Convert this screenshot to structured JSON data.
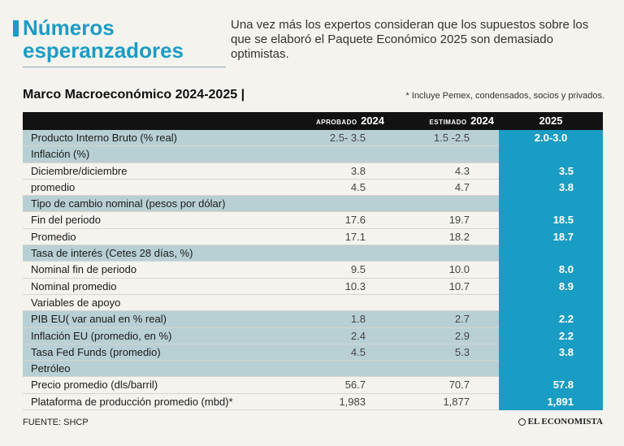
{
  "header": {
    "title_line1": "Números",
    "title_line2": "esperanzadores",
    "subtitle": "Una vez más los expertos consideran que los supuestos sobre los que se elaboró el Paquete Económico 2025 son demasiado optimistas."
  },
  "section": {
    "title": "Marco Macroeconómico 2024-2025 |",
    "note": "* Incluye Pemex, condensados, socios y privados."
  },
  "table": {
    "headers": {
      "aprobado_small": "APROBADO",
      "aprobado_year": "2024",
      "estimado_small": "ESTIMADO",
      "estimado_year": "2024",
      "y2025": "2025"
    },
    "rows": [
      {
        "label": "Producto Interno Bruto (% real)",
        "aprobado": "2.5- 3.5",
        "estimado": "1.5 -2.5",
        "y2025": "2.0-3.0"
      },
      {
        "label": "Inflación (%)",
        "aprobado": "",
        "estimado": "",
        "y2025": ""
      },
      {
        "label": "Diciembre/diciembre",
        "aprobado": "3.8",
        "estimado": "4.3",
        "y2025": "3.5"
      },
      {
        "label": "promedio",
        "aprobado": "4.5",
        "estimado": "4.7",
        "y2025": "3.8"
      },
      {
        "label": "Tipo de cambio nominal (pesos por dólar)",
        "aprobado": "",
        "estimado": "",
        "y2025": ""
      },
      {
        "label": "Fin del periodo",
        "aprobado": "17.6",
        "estimado": "19.7",
        "y2025": "18.5"
      },
      {
        "label": "Promedio",
        "aprobado": "17.1",
        "estimado": "18.2",
        "y2025": "18.7"
      },
      {
        "label": "Tasa de interés (Cetes 28 días, %)",
        "aprobado": "",
        "estimado": "",
        "y2025": ""
      },
      {
        "label": "Nominal fin de periodo",
        "aprobado": "9.5",
        "estimado": "10.0",
        "y2025": "8.0"
      },
      {
        "label": "Nominal promedio",
        "aprobado": "10.3",
        "estimado": "10.7",
        "y2025": "8.9"
      },
      {
        "label": "Variables de apoyo",
        "aprobado": "",
        "estimado": "",
        "y2025": ""
      },
      {
        "label": "PIB EU( var anual en % real)",
        "aprobado": "1.8",
        "estimado": "2.7",
        "y2025": "2.2"
      },
      {
        "label": "Inflación EU (promedio, en %)",
        "aprobado": "2.4",
        "estimado": "2.9",
        "y2025": "2.2"
      },
      {
        "label": "Tasa Fed Funds (promedio)",
        "aprobado": "4.5",
        "estimado": "5.3",
        "y2025": "3.8"
      },
      {
        "label": "Petróleo",
        "aprobado": "",
        "estimado": "",
        "y2025": ""
      },
      {
        "label": "Precio promedio (dls/barril)",
        "aprobado": "56.7",
        "estimado": "70.7",
        "y2025": "57.8"
      },
      {
        "label": "Plataforma de producción promedio (mbd)*",
        "aprobado": "1,983",
        "estimado": "1,877",
        "y2025": "1,891"
      }
    ]
  },
  "footer": {
    "source": "FUENTE: SHCP",
    "brand": "EL ECONOMISTA"
  },
  "colors": {
    "accent": "#1a9dc4",
    "row_highlight": "#b8d0d4",
    "header_bg": "#121212"
  }
}
